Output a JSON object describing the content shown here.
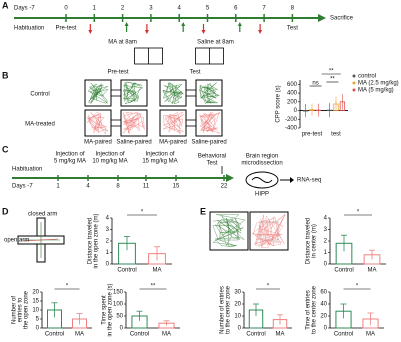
{
  "panel_labels": [
    "A",
    "B",
    "C",
    "D",
    "E"
  ],
  "timeline_a": {
    "days_label": "Days -7",
    "days": [
      0,
      1,
      2,
      3,
      4,
      5,
      6,
      7,
      8
    ],
    "end": "Sacrifice",
    "habituation": "Habituation",
    "pretest": "Pre-test",
    "ma": "MA at 8am",
    "saline": "Saline at 8am",
    "test": "Test"
  },
  "panel_b": {
    "pretest": "Pre-test",
    "test": "Test",
    "control": "Control",
    "ma_treated": "MA-treated",
    "chamber_labels": [
      "MA-paired",
      "Saline-paired",
      "MA-paired",
      "Saline-paired"
    ]
  },
  "timeline_c": {
    "days_label": "Days -7",
    "days": [
      1,
      4,
      8,
      11,
      15,
      22
    ],
    "injections": [
      [
        "Injection of",
        "5 mg/kg MA"
      ],
      [
        "Injection of",
        "10 mg/kg MA"
      ],
      [
        "Injection of",
        "15 mg/kg MA"
      ]
    ],
    "behavioral": [
      "Behavioral",
      "Test"
    ],
    "brain": [
      "Brain region",
      "microdissection"
    ],
    "habituation": "Habituation",
    "hipp": "HIPP",
    "rnaseq": "RNA-seq"
  },
  "panel_d": {
    "closed_arm": "closed arm",
    "open_arm": "open arm"
  },
  "chart_data": [
    {
      "type": "grouped",
      "ylabel": [
        "CPP score (s)"
      ],
      "categories": [
        "pre-test",
        "test"
      ],
      "ylim": [
        -400,
        700
      ],
      "yticks": [
        -400,
        -200,
        0,
        200,
        400,
        600
      ],
      "series": [
        {
          "name": "control",
          "color": "#555555",
          "values": [
            0,
            10
          ],
          "errors": [
            150,
            160
          ]
        },
        {
          "name": "MA (2.5 mg/kg)",
          "color": "#f0a030",
          "values": [
            20,
            150
          ],
          "errors": [
            140,
            170
          ]
        },
        {
          "name": "MA (5 mg/kg)",
          "color": "#e05050",
          "values": [
            10,
            200
          ],
          "errors": [
            150,
            180
          ]
        }
      ],
      "annotations": [
        "ns",
        "**",
        "**"
      ]
    },
    {
      "type": "bar",
      "ylabel": [
        "Distance traveled",
        "in the open zone (m)"
      ],
      "categories": [
        "Control",
        "MA"
      ],
      "values": [
        1.8,
        0.9
      ],
      "errors": [
        0.6,
        0.6
      ],
      "colors": [
        "#2e8b57",
        "#f08080"
      ],
      "ylim": [
        0,
        4
      ],
      "yticks": [
        0,
        1,
        2,
        3,
        4
      ],
      "annotations": [
        "*"
      ]
    },
    {
      "type": "bar",
      "ylabel": [
        "Number of",
        "entries to",
        "the open zone"
      ],
      "categories": [
        "Control",
        "MA"
      ],
      "values": [
        10,
        5
      ],
      "errors": [
        4,
        3
      ],
      "colors": [
        "#2e8b57",
        "#f08080"
      ],
      "ylim": [
        0,
        20
      ],
      "yticks": [
        0,
        5,
        10,
        15,
        20
      ],
      "annotations": [
        "*"
      ]
    },
    {
      "type": "bar",
      "ylabel": [
        "Time spent",
        "in the open zone (s)"
      ],
      "categories": [
        "Control",
        "MA"
      ],
      "values": [
        50,
        20
      ],
      "errors": [
        20,
        10
      ],
      "colors": [
        "#2e8b57",
        "#f08080"
      ],
      "ylim": [
        0,
        150
      ],
      "yticks": [
        0,
        50,
        100,
        150
      ],
      "annotations": [
        "**"
      ]
    },
    {
      "type": "bar",
      "ylabel": [
        "Distance traveled",
        "in center (m)"
      ],
      "categories": [
        "Control",
        "MA"
      ],
      "values": [
        1.8,
        0.8
      ],
      "errors": [
        0.7,
        0.4
      ],
      "colors": [
        "#2e8b57",
        "#f08080"
      ],
      "ylim": [
        0,
        4
      ],
      "yticks": [
        0,
        1,
        2,
        3,
        4
      ],
      "annotations": [
        "*"
      ]
    },
    {
      "type": "bar",
      "ylabel": [
        "Number of entries",
        "to the center zone"
      ],
      "categories": [
        "Control",
        "MA"
      ],
      "values": [
        15,
        7
      ],
      "errors": [
        5,
        4
      ],
      "colors": [
        "#2e8b57",
        "#f08080"
      ],
      "ylim": [
        0,
        30
      ],
      "yticks": [
        0,
        10,
        20,
        30
      ],
      "annotations": [
        "*"
      ]
    },
    {
      "type": "bar",
      "ylabel": [
        "Time of entries",
        "to the center zone"
      ],
      "categories": [
        "Control",
        "MA"
      ],
      "values": [
        28,
        15
      ],
      "errors": [
        12,
        10
      ],
      "colors": [
        "#2e8b57",
        "#f08080"
      ],
      "ylim": [
        0,
        60
      ],
      "yticks": [
        0,
        20,
        40,
        60
      ],
      "annotations": [
        "*"
      ]
    }
  ]
}
